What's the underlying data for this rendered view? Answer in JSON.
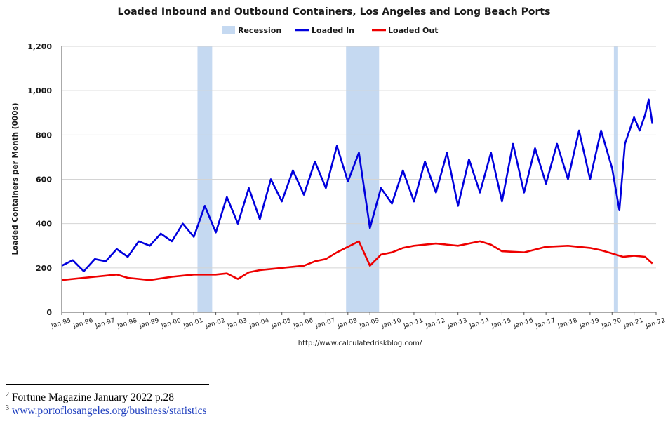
{
  "chart_data": {
    "type": "line",
    "title": "Loaded Inbound and Outbound Containers, Los Angeles and Long Beach Ports",
    "ylabel": "Loaded Containers per Month (000s)",
    "xlabel": "",
    "source": "http://www.calculatedriskblog.com/",
    "ylim": [
      0,
      1200
    ],
    "xlim": [
      "1995-01",
      "2022-01"
    ],
    "yticks": [
      0,
      200,
      400,
      600,
      800,
      1000,
      1200
    ],
    "ytick_labels": [
      "0",
      "200",
      "400",
      "600",
      "800",
      "1,000",
      "1,200"
    ],
    "xtick_labels": [
      "Jan-95",
      "Jan-96",
      "Jan-97",
      "Jan-98",
      "Jan-99",
      "Jan-00",
      "Jan-01",
      "Jan-02",
      "Jan-03",
      "Jan-04",
      "Jan-05",
      "Jan-06",
      "Jan-07",
      "Jan-08",
      "Jan-09",
      "Jan-10",
      "Jan-11",
      "Jan-12",
      "Jan-13",
      "Jan-14",
      "Jan-15",
      "Jan-16",
      "Jan-17",
      "Jan-18",
      "Jan-19",
      "Jan-20",
      "Jan-21",
      "Jan-22"
    ],
    "grid": "horizontal",
    "legend_position": "top",
    "legend": [
      {
        "label": "Recession",
        "color": "#c5d9f1",
        "kind": "band"
      },
      {
        "label": "Loaded In",
        "color": "#0000dd",
        "kind": "line"
      },
      {
        "label": "Loaded Out",
        "color": "#ee0000",
        "kind": "line"
      }
    ],
    "recessions": [
      {
        "start": "2001-03",
        "end": "2001-11"
      },
      {
        "start": "2007-12",
        "end": "2009-06"
      },
      {
        "start": "2020-02",
        "end": "2020-04"
      }
    ],
    "series": [
      {
        "name": "Loaded In",
        "color": "#0000dd",
        "x": [
          "1995-01",
          "1995-07",
          "1996-01",
          "1996-07",
          "1997-01",
          "1997-07",
          "1998-01",
          "1998-07",
          "1999-01",
          "1999-07",
          "2000-01",
          "2000-07",
          "2001-01",
          "2001-07",
          "2002-01",
          "2002-07",
          "2003-01",
          "2003-07",
          "2004-01",
          "2004-07",
          "2005-01",
          "2005-07",
          "2006-01",
          "2006-07",
          "2007-01",
          "2007-07",
          "2008-01",
          "2008-07",
          "2009-01",
          "2009-07",
          "2010-01",
          "2010-07",
          "2011-01",
          "2011-07",
          "2012-01",
          "2012-07",
          "2013-01",
          "2013-07",
          "2014-01",
          "2014-07",
          "2015-01",
          "2015-07",
          "2016-01",
          "2016-07",
          "2017-01",
          "2017-07",
          "2018-01",
          "2018-07",
          "2019-01",
          "2019-07",
          "2020-01",
          "2020-05",
          "2020-08",
          "2021-01",
          "2021-04",
          "2021-07",
          "2021-09",
          "2021-11"
        ],
        "y": [
          210,
          235,
          185,
          240,
          230,
          285,
          250,
          320,
          300,
          355,
          320,
          400,
          340,
          480,
          360,
          520,
          400,
          560,
          420,
          600,
          500,
          640,
          530,
          680,
          560,
          750,
          590,
          720,
          380,
          560,
          490,
          640,
          500,
          680,
          540,
          720,
          480,
          690,
          540,
          720,
          500,
          760,
          540,
          740,
          580,
          760,
          600,
          820,
          600,
          820,
          650,
          460,
          760,
          880,
          820,
          890,
          960,
          850
        ]
      },
      {
        "name": "Loaded Out",
        "color": "#ee0000",
        "x": [
          "1995-01",
          "1996-01",
          "1997-01",
          "1997-07",
          "1998-01",
          "1999-01",
          "2000-01",
          "2001-01",
          "2002-01",
          "2002-07",
          "2003-01",
          "2003-07",
          "2004-01",
          "2005-01",
          "2006-01",
          "2006-07",
          "2007-01",
          "2007-07",
          "2008-01",
          "2008-07",
          "2009-01",
          "2009-07",
          "2010-01",
          "2010-07",
          "2011-01",
          "2012-01",
          "2013-01",
          "2014-01",
          "2014-07",
          "2015-01",
          "2016-01",
          "2017-01",
          "2018-01",
          "2019-01",
          "2019-07",
          "2020-01",
          "2020-07",
          "2021-01",
          "2021-07",
          "2021-11"
        ],
        "y": [
          145,
          155,
          165,
          170,
          155,
          145,
          160,
          170,
          170,
          175,
          150,
          180,
          190,
          200,
          210,
          230,
          240,
          270,
          295,
          320,
          210,
          260,
          270,
          290,
          300,
          310,
          300,
          320,
          305,
          275,
          270,
          295,
          300,
          290,
          280,
          265,
          250,
          255,
          250,
          220
        ]
      }
    ]
  },
  "footnotes": [
    {
      "mark": "2",
      "text": "Fortune Magazine January 2022 p.28"
    },
    {
      "mark": "3",
      "text": "www.portoflosangeles.org/business/statistics"
    }
  ]
}
